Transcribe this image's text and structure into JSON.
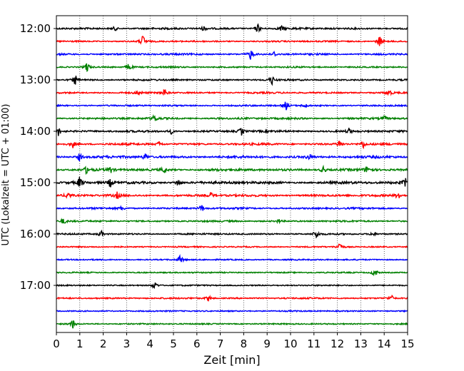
{
  "chart_data": {
    "type": "line",
    "title": "",
    "xlabel": "Zeit  [min]",
    "ylabel": "UTC (Lokalzeit = UTC + 01:00)",
    "xlim": [
      0,
      15
    ],
    "x_ticks": [
      "0",
      "1",
      "2",
      "3",
      "4",
      "5",
      "6",
      "7",
      "8",
      "9",
      "10",
      "11",
      "12",
      "13",
      "14",
      "15"
    ],
    "y_ticks": [
      {
        "hour": 12,
        "label": "12:00"
      },
      {
        "hour": 13,
        "label": "13:00"
      },
      {
        "hour": 14,
        "label": "14:00"
      },
      {
        "hour": 15,
        "label": "15:00"
      },
      {
        "hour": 16,
        "label": "16:00"
      },
      {
        "hour": 17,
        "label": "17:00"
      }
    ],
    "vertical_grid": "dotted",
    "trace_interval_min": 15,
    "start_time": "12:00",
    "trace_colors": [
      "#000000",
      "#ff0000",
      "#0000ff",
      "#008000"
    ],
    "traces": [
      {
        "start": "12:00",
        "color": "#000000",
        "noise": 0.9,
        "events": [
          [
            2.5,
            0.8
          ],
          [
            6.3,
            0.7
          ],
          [
            8.6,
            1.6
          ],
          [
            9.6,
            0.9
          ]
        ]
      },
      {
        "start": "12:15",
        "color": "#ff0000",
        "noise": 0.6,
        "events": [
          [
            3.7,
            2.2
          ],
          [
            13.8,
            2.0
          ]
        ]
      },
      {
        "start": "12:30",
        "color": "#0000ff",
        "noise": 0.8,
        "events": [
          [
            8.3,
            1.8
          ],
          [
            9.3,
            0.8
          ]
        ]
      },
      {
        "start": "12:45",
        "color": "#008000",
        "noise": 0.6,
        "events": [
          [
            1.3,
            1.8
          ],
          [
            3.1,
            1.5
          ]
        ]
      },
      {
        "start": "13:00",
        "color": "#000000",
        "noise": 0.7,
        "events": [
          [
            0.8,
            1.8
          ],
          [
            9.2,
            1.6
          ]
        ]
      },
      {
        "start": "13:15",
        "color": "#ff0000",
        "noise": 0.7,
        "events": [
          [
            3.5,
            0.7
          ],
          [
            4.6,
            1.8
          ],
          [
            14.2,
            1.2
          ]
        ]
      },
      {
        "start": "13:30",
        "color": "#0000ff",
        "noise": 0.6,
        "events": [
          [
            9.8,
            1.6
          ],
          [
            10.6,
            0.8
          ]
        ]
      },
      {
        "start": "13:45",
        "color": "#008000",
        "noise": 0.9,
        "events": [
          [
            4.2,
            1.4
          ],
          [
            14.0,
            0.8
          ]
        ]
      },
      {
        "start": "14:00",
        "color": "#000000",
        "noise": 1.0,
        "events": [
          [
            0.1,
            1.6
          ],
          [
            4.9,
            0.8
          ],
          [
            7.9,
            1.4
          ],
          [
            12.5,
            1.0
          ]
        ]
      },
      {
        "start": "14:15",
        "color": "#ff0000",
        "noise": 1.0,
        "events": [
          [
            0.7,
            1.2
          ],
          [
            4.4,
            0.9
          ],
          [
            12.1,
            1.4
          ],
          [
            13.1,
            1.2
          ]
        ]
      },
      {
        "start": "14:30",
        "color": "#0000ff",
        "noise": 1.3,
        "events": [
          [
            1.0,
            1.5
          ],
          [
            3.8,
            1.2
          ],
          [
            10.8,
            1.2
          ]
        ]
      },
      {
        "start": "14:45",
        "color": "#008000",
        "noise": 1.3,
        "events": [
          [
            1.3,
            1.4
          ],
          [
            2.3,
            1.2
          ],
          [
            4.6,
            1.2
          ],
          [
            11.4,
            1.3
          ],
          [
            13.3,
            1.4
          ]
        ]
      },
      {
        "start": "15:00",
        "color": "#000000",
        "noise": 1.4,
        "events": [
          [
            1.0,
            2.0
          ],
          [
            2.3,
            1.4
          ],
          [
            5.2,
            1.5
          ],
          [
            14.9,
            1.4
          ]
        ]
      },
      {
        "start": "15:15",
        "color": "#ff0000",
        "noise": 1.1,
        "events": [
          [
            0.5,
            1.4
          ],
          [
            2.6,
            1.0
          ],
          [
            6.6,
            1.0
          ],
          [
            14.6,
            1.4
          ]
        ]
      },
      {
        "start": "15:30",
        "color": "#0000ff",
        "noise": 0.8,
        "events": [
          [
            6.2,
            1.4
          ],
          [
            2.8,
            0.7
          ]
        ]
      },
      {
        "start": "15:45",
        "color": "#008000",
        "noise": 0.7,
        "events": [
          [
            0.3,
            1.2
          ],
          [
            9.5,
            0.6
          ]
        ]
      },
      {
        "start": "16:00",
        "color": "#000000",
        "noise": 0.6,
        "events": [
          [
            1.9,
            1.2
          ],
          [
            11.1,
            1.5
          ],
          [
            13.5,
            0.9
          ]
        ]
      },
      {
        "start": "16:15",
        "color": "#ff0000",
        "noise": 0.4,
        "events": [
          [
            12.1,
            1.8
          ]
        ]
      },
      {
        "start": "16:30",
        "color": "#0000ff",
        "noise": 0.4,
        "events": [
          [
            5.3,
            1.6
          ]
        ]
      },
      {
        "start": "16:45",
        "color": "#008000",
        "noise": 0.4,
        "events": [
          [
            13.6,
            1.8
          ]
        ]
      },
      {
        "start": "17:00",
        "color": "#000000",
        "noise": 0.4,
        "events": [
          [
            4.2,
            1.5
          ]
        ]
      },
      {
        "start": "17:15",
        "color": "#ff0000",
        "noise": 0.6,
        "events": [
          [
            6.5,
            1.0
          ],
          [
            14.3,
            1.2
          ]
        ]
      },
      {
        "start": "17:30",
        "color": "#0000ff",
        "noise": 0.4,
        "events": []
      },
      {
        "start": "17:45",
        "color": "#008000",
        "noise": 0.4,
        "events": [
          [
            0.7,
            1.6
          ]
        ]
      }
    ]
  }
}
